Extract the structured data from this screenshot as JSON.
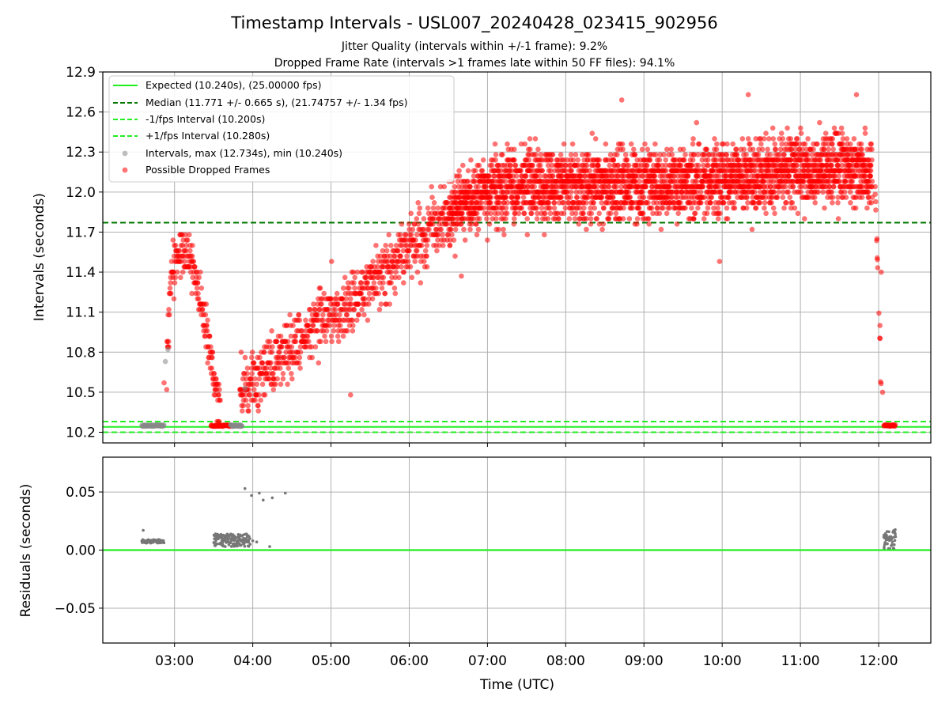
{
  "chart_data": [
    {
      "type": "scatter",
      "title": "Timestamp Intervals - USL007_20240428_023415_902956",
      "subtitle_lines": [
        "Jitter Quality (intervals within +/-1 frame): 9.2%",
        "Dropped Frame Rate (intervals >1 frames late within 50 FF files): 94.1%"
      ],
      "xlabel": "",
      "ylabel": "Intervals (seconds)",
      "x_unit": "time_utc",
      "xlim": [
        "02:05",
        "12:40"
      ],
      "ylim": [
        10.12,
        12.9
      ],
      "x_ticks": [
        "03:00",
        "04:00",
        "05:00",
        "06:00",
        "07:00",
        "08:00",
        "09:00",
        "10:00",
        "11:00",
        "12:00"
      ],
      "y_ticks": [
        10.2,
        10.5,
        10.8,
        11.1,
        11.4,
        11.7,
        12.0,
        12.3,
        12.6,
        12.9
      ],
      "y_tick_labels": [
        "10.2",
        "10.5",
        "10.8",
        "11.1",
        "11.4",
        "11.7",
        "12.0",
        "12.3",
        "12.6",
        "12.9"
      ],
      "grid": true,
      "legend_position": "top-left",
      "reference_lines": [
        {
          "label": "Expected (10.240s), (25.00000 fps)",
          "y": 10.24,
          "style": "solid",
          "color": "#22ee22"
        },
        {
          "label": "Median (11.771 +/- 0.665 s), (21.74757 +/- 1.34 fps)",
          "y": 11.771,
          "style": "dashed",
          "color": "#007700"
        },
        {
          "label": "-1/fps Interval (10.200s)",
          "y": 10.2,
          "style": "dashed",
          "color": "#22ee22"
        },
        {
          "label": "+1/fps Interval (10.280s)",
          "y": 10.28,
          "style": "dashed",
          "color": "#22ee22"
        }
      ],
      "scatter_series": [
        {
          "label": "Intervals, max (12.734s), min (10.240s)",
          "color": "#888888"
        },
        {
          "label": "Possible Dropped Frames",
          "color": "#ff0000"
        }
      ],
      "max_interval": 12.734,
      "min_interval": 10.24,
      "trend": [
        {
          "x": "02:52",
          "y": 10.25
        },
        {
          "x": "02:57",
          "y": 11.35
        },
        {
          "x": "03:05",
          "y": 11.55
        },
        {
          "x": "03:12",
          "y": 11.5
        },
        {
          "x": "03:20",
          "y": 11.2
        },
        {
          "x": "03:27",
          "y": 10.8
        },
        {
          "x": "03:34",
          "y": 10.4
        },
        {
          "x": "03:52",
          "y": 10.5
        },
        {
          "x": "04:15",
          "y": 10.7
        },
        {
          "x": "04:45",
          "y": 11.0
        },
        {
          "x": "05:15",
          "y": 11.15
        },
        {
          "x": "05:45",
          "y": 11.45
        },
        {
          "x": "06:15",
          "y": 11.7
        },
        {
          "x": "06:45",
          "y": 11.95
        },
        {
          "x": "07:15",
          "y": 12.05
        },
        {
          "x": "08:00",
          "y": 12.05
        },
        {
          "x": "09:00",
          "y": 12.05
        },
        {
          "x": "10:00",
          "y": 12.1
        },
        {
          "x": "11:00",
          "y": 12.15
        },
        {
          "x": "11:45",
          "y": 12.2
        },
        {
          "x": "11:55",
          "y": 12.1
        }
      ],
      "clusters": [
        {
          "series": "Intervals, max (12.734s), min (10.240s)",
          "x_start": "02:35",
          "x_end": "02:52",
          "y": 10.25
        },
        {
          "series": "Possible Dropped Frames",
          "x_start": "03:28",
          "x_end": "03:44",
          "y": 10.25
        },
        {
          "series": "Intervals, max (12.734s), min (10.240s)",
          "x_start": "03:43",
          "x_end": "03:52",
          "y": 10.25
        },
        {
          "series": "Possible Dropped Frames",
          "x_start": "12:04",
          "x_end": "12:13",
          "y": 10.25
        }
      ],
      "isolated_points": [
        {
          "series": "Intervals, max (12.734s), min (10.240s)",
          "x": "02:53",
          "y": 10.73
        },
        {
          "series": "Intervals, max (12.734s), min (10.240s)",
          "x": "02:55",
          "y": 10.82
        },
        {
          "series": "Intervals, max (12.734s), min (10.240s)",
          "x": "03:54",
          "y": 10.53
        },
        {
          "series": "Possible Dropped Frames",
          "x": "02:52",
          "y": 10.57
        },
        {
          "series": "Possible Dropped Frames",
          "x": "08:43",
          "y": 12.69
        },
        {
          "series": "Possible Dropped Frames",
          "x": "10:20",
          "y": 12.73
        },
        {
          "series": "Possible Dropped Frames",
          "x": "11:43",
          "y": 12.73
        },
        {
          "series": "Possible Dropped Frames",
          "x": "06:40",
          "y": 11.37
        },
        {
          "series": "Possible Dropped Frames",
          "x": "09:58",
          "y": 11.48
        },
        {
          "series": "Possible Dropped Frames",
          "x": "05:15",
          "y": 10.48
        },
        {
          "series": "Possible Dropped Frames",
          "x": "12:03",
          "y": 10.5
        },
        {
          "series": "Possible Dropped Frames",
          "x": "12:02",
          "y": 11.4
        },
        {
          "series": "Possible Dropped Frames",
          "x": "12:01",
          "y": 11.0
        }
      ]
    },
    {
      "type": "scatter",
      "title": "",
      "xlabel": "Time (UTC)",
      "ylabel": "Residuals (seconds)",
      "x_unit": "time_utc",
      "xlim": [
        "02:05",
        "12:40"
      ],
      "ylim": [
        -0.08,
        0.08
      ],
      "x_ticks": [
        "03:00",
        "04:00",
        "05:00",
        "06:00",
        "07:00",
        "08:00",
        "09:00",
        "10:00",
        "11:00",
        "12:00"
      ],
      "y_ticks": [
        -0.05,
        0.0,
        0.05
      ],
      "y_tick_labels": [
        "−0.05",
        "0.00",
        "0.05"
      ],
      "grid": true,
      "zero_line_color": "#22ee22",
      "point_color": "#777777",
      "clusters": [
        {
          "x_start": "02:35",
          "x_end": "02:52",
          "y_min": 0.006,
          "y_max": 0.009
        },
        {
          "x_start": "03:30",
          "x_end": "03:58",
          "y_min": 0.003,
          "y_max": 0.014
        },
        {
          "x_start": "12:04",
          "x_end": "12:13",
          "y_min": 0.001,
          "y_max": 0.018
        }
      ],
      "points": [
        {
          "x": "02:36",
          "y": 0.017
        },
        {
          "x": "03:54",
          "y": 0.053
        },
        {
          "x": "03:59",
          "y": 0.047
        },
        {
          "x": "04:05",
          "y": 0.049
        },
        {
          "x": "04:08",
          "y": 0.043
        },
        {
          "x": "04:15",
          "y": 0.045
        },
        {
          "x": "04:25",
          "y": 0.049
        },
        {
          "x": "04:03",
          "y": 0.007
        },
        {
          "x": "04:00",
          "y": 0.008
        },
        {
          "x": "04:13",
          "y": 0.003
        }
      ]
    }
  ]
}
